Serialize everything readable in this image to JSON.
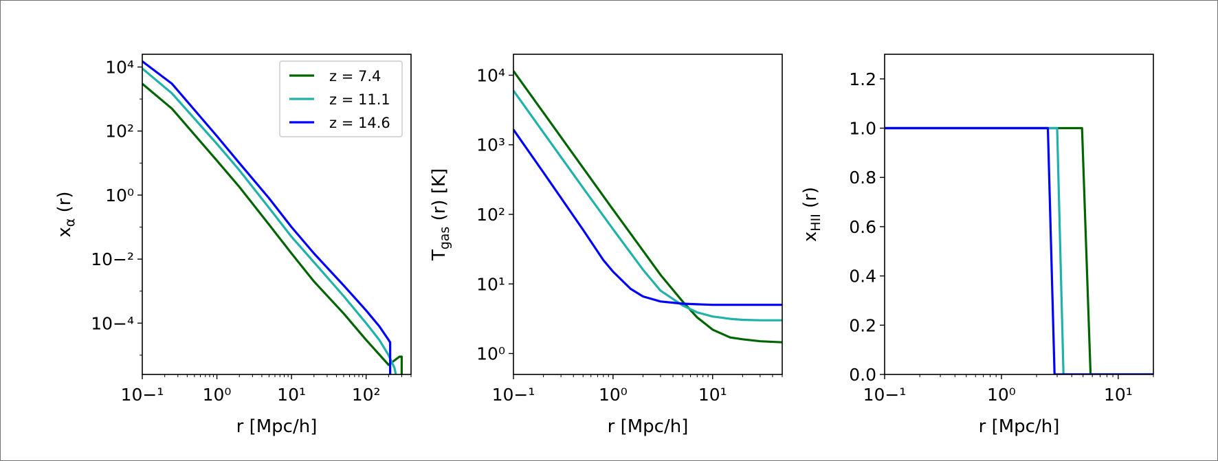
{
  "chart_data": [
    {
      "type": "line",
      "xscale": "log",
      "yscale": "log",
      "xlim": [
        0.1,
        400
      ],
      "ylim": [
        2.5e-06,
        25000
      ],
      "xlabel": "r  [Mpc/h]",
      "ylabel_main": "x",
      "ylabel_sub": "α",
      "ylabel_tail": " (r)",
      "xticks": [
        0.1,
        1,
        10,
        100
      ],
      "yticks": [
        0.0001,
        0.01,
        1,
        100,
        10000
      ],
      "legend": {
        "placement": "top-right"
      },
      "series": [
        {
          "name": "z = 7.4",
          "color": "#006400",
          "x": [
            0.1,
            0.25,
            1,
            2,
            5,
            10,
            20,
            50,
            100,
            200,
            280,
            300,
            300
          ],
          "y": [
            3000,
            500,
            12,
            1.8,
            0.12,
            0.015,
            0.002,
            0.0002,
            3e-05,
            5e-06,
            9e-06,
            9e-06,
            2.5e-06
          ]
        },
        {
          "name": "z = 11.1",
          "color": "#20b2aa",
          "x": [
            0.1,
            0.25,
            1,
            2,
            5,
            10,
            20,
            50,
            100,
            150,
            200,
            240,
            250,
            250
          ],
          "y": [
            9000,
            1500,
            40,
            6,
            0.4,
            0.05,
            0.008,
            0.0007,
            0.0001,
            3e-05,
            1e-05,
            4e-06,
            2.5e-06,
            2.5e-06
          ]
        },
        {
          "name": "z = 14.6",
          "color": "#0000ff",
          "x": [
            0.1,
            0.25,
            1,
            2,
            5,
            10,
            20,
            50,
            100,
            150,
            200,
            210,
            210
          ],
          "y": [
            15000,
            3000,
            70,
            10,
            0.8,
            0.1,
            0.015,
            0.0015,
            0.00025,
            8e-05,
            3e-05,
            2.5e-05,
            2.5e-06
          ]
        }
      ]
    },
    {
      "type": "line",
      "xscale": "log",
      "yscale": "log",
      "xlim": [
        0.1,
        50
      ],
      "ylim": [
        0.5,
        20000
      ],
      "xlabel": "r  [Mpc/h]",
      "ylabel_main": "T",
      "ylabel_sub": "gas",
      "ylabel_tail": " (r) [K]",
      "xticks": [
        0.1,
        1,
        10
      ],
      "yticks": [
        1,
        10,
        100,
        1000,
        10000
      ],
      "series": [
        {
          "name": "z = 7.4",
          "color": "#006400",
          "x": [
            0.1,
            0.2,
            0.5,
            1,
            2,
            3,
            5,
            7,
            10,
            15,
            20,
            30,
            50
          ],
          "y": [
            11500,
            2900,
            465,
            117,
            30,
            13.5,
            5.6,
            3.3,
            2.2,
            1.7,
            1.6,
            1.5,
            1.45
          ]
        },
        {
          "name": "z = 11.1",
          "color": "#20b2aa",
          "x": [
            0.1,
            0.2,
            0.5,
            1,
            2,
            3,
            5,
            7,
            10,
            15,
            20,
            30,
            50
          ],
          "y": [
            6000,
            1500,
            240,
            61,
            16,
            8,
            4.9,
            3.9,
            3.4,
            3.15,
            3.05,
            3.0,
            3.0
          ]
        },
        {
          "name": "z = 14.6",
          "color": "#0000ff",
          "x": [
            0.1,
            0.2,
            0.5,
            0.8,
            1,
            1.5,
            2,
            3,
            5,
            7,
            10,
            20,
            50
          ],
          "y": [
            1650,
            400,
            60,
            22,
            15,
            8.5,
            6.6,
            5.6,
            5.2,
            5.1,
            5.0,
            5.0,
            5.0
          ]
        }
      ]
    },
    {
      "type": "line",
      "xscale": "log",
      "yscale": "linear",
      "xlim": [
        0.1,
        20
      ],
      "ylim": [
        0,
        1.3
      ],
      "xlabel": "r  [Mpc/h]",
      "ylabel_main": "x",
      "ylabel_sub": "HII",
      "ylabel_tail": " (r)",
      "xticks": [
        0.1,
        1,
        10
      ],
      "yticks": [
        0,
        0.2,
        0.4,
        0.6,
        0.8,
        1.0,
        1.2
      ],
      "ytick_labels": [
        "0.0",
        "0.2",
        "0.4",
        "0.6",
        "0.8",
        "1.0",
        "1.2"
      ],
      "series": [
        {
          "name": "z = 7.4",
          "color": "#006400",
          "x": [
            0.1,
            4.9,
            5.8,
            20
          ],
          "y": [
            1,
            1,
            0,
            0
          ]
        },
        {
          "name": "z = 11.1",
          "color": "#20b2aa",
          "x": [
            0.1,
            3.0,
            3.4,
            20
          ],
          "y": [
            1,
            1,
            0,
            0
          ]
        },
        {
          "name": "z = 14.6",
          "color": "#0000ff",
          "x": [
            0.1,
            2.5,
            2.85,
            20
          ],
          "y": [
            1,
            1,
            0,
            0
          ]
        }
      ]
    }
  ]
}
